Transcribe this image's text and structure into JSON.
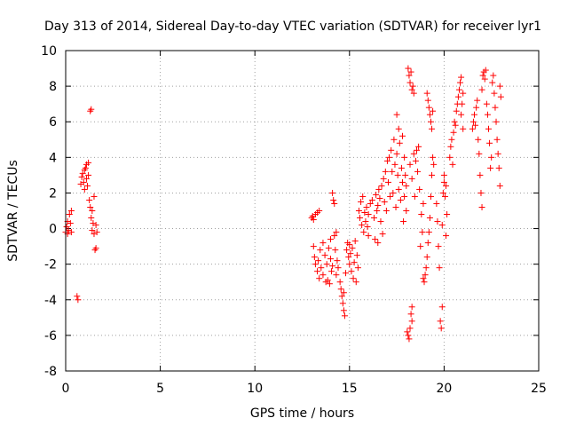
{
  "chart_data": {
    "type": "scatter",
    "title": "Day 313 of 2014, Sidereal Day-to-day VTEC variation (SDTVAR) for receiver lyr1",
    "xlabel": "GPS time / hours",
    "ylabel": "SDTVAR / TECUs",
    "xlim": [
      0,
      25
    ],
    "ylim": [
      -8,
      10
    ],
    "xticks": [
      0,
      5,
      10,
      15,
      20,
      25
    ],
    "yticks": [
      -8,
      -6,
      -4,
      -2,
      0,
      2,
      4,
      6,
      8,
      10
    ],
    "grid": true,
    "marker": "+",
    "marker_color": "#ff0000",
    "series": [
      {
        "name": "SDTVAR",
        "points": [
          [
            0.0,
            -0.2
          ],
          [
            0.05,
            0.1
          ],
          [
            0.1,
            -0.3
          ],
          [
            0.1,
            0.4
          ],
          [
            0.15,
            -0.1
          ],
          [
            0.2,
            0.8
          ],
          [
            0.25,
            0.3
          ],
          [
            0.3,
            1.0
          ],
          [
            0.3,
            -0.2
          ],
          [
            0.6,
            -3.8
          ],
          [
            0.65,
            -4.0
          ],
          [
            0.8,
            2.5
          ],
          [
            0.85,
            2.9
          ],
          [
            0.9,
            3.1
          ],
          [
            0.95,
            2.6
          ],
          [
            1.0,
            3.3
          ],
          [
            1.0,
            2.2
          ],
          [
            1.05,
            3.4
          ],
          [
            1.1,
            2.8
          ],
          [
            1.1,
            3.6
          ],
          [
            1.15,
            2.4
          ],
          [
            1.2,
            3.0
          ],
          [
            1.2,
            3.7
          ],
          [
            1.25,
            1.6
          ],
          [
            1.3,
            6.6
          ],
          [
            1.35,
            6.7
          ],
          [
            1.3,
            1.2
          ],
          [
            1.35,
            0.6
          ],
          [
            1.4,
            1.0
          ],
          [
            1.4,
            -0.1
          ],
          [
            1.45,
            0.3
          ],
          [
            1.5,
            1.8
          ],
          [
            1.5,
            -0.3
          ],
          [
            1.55,
            -1.2
          ],
          [
            1.6,
            -1.1
          ],
          [
            1.6,
            0.2
          ],
          [
            1.65,
            -0.2
          ],
          [
            13.0,
            0.6
          ],
          [
            13.05,
            0.7
          ],
          [
            13.1,
            0.5
          ],
          [
            13.2,
            0.8
          ],
          [
            13.3,
            0.9
          ],
          [
            13.4,
            1.0
          ],
          [
            13.1,
            -1.0
          ],
          [
            13.15,
            -1.6
          ],
          [
            13.2,
            -2.0
          ],
          [
            13.3,
            -2.4
          ],
          [
            13.35,
            -1.8
          ],
          [
            13.4,
            -2.8
          ],
          [
            13.45,
            -1.2
          ],
          [
            13.5,
            -2.2
          ],
          [
            13.6,
            -2.6
          ],
          [
            13.6,
            -0.8
          ],
          [
            13.7,
            -1.5
          ],
          [
            13.75,
            -3.0
          ],
          [
            13.8,
            -2.0
          ],
          [
            13.85,
            -2.9
          ],
          [
            13.9,
            -1.1
          ],
          [
            13.95,
            -3.1
          ],
          [
            14.0,
            -1.7
          ],
          [
            14.0,
            -0.6
          ],
          [
            14.05,
            -2.4
          ],
          [
            14.1,
            -2.1
          ],
          [
            14.1,
            2.0
          ],
          [
            14.15,
            1.6
          ],
          [
            14.2,
            1.4
          ],
          [
            14.2,
            -0.4
          ],
          [
            14.25,
            -1.2
          ],
          [
            14.3,
            -2.6
          ],
          [
            14.3,
            -0.2
          ],
          [
            14.35,
            -1.8
          ],
          [
            14.4,
            -2.2
          ],
          [
            14.5,
            -3.0
          ],
          [
            14.55,
            -3.4
          ],
          [
            14.6,
            -3.8
          ],
          [
            14.65,
            -4.2
          ],
          [
            14.7,
            -3.6
          ],
          [
            14.7,
            -4.6
          ],
          [
            14.75,
            -4.9
          ],
          [
            14.8,
            -2.5
          ],
          [
            14.85,
            -1.2
          ],
          [
            14.9,
            -0.8
          ],
          [
            14.95,
            -1.6
          ],
          [
            15.0,
            -2.0
          ],
          [
            15.0,
            -0.9
          ],
          [
            15.05,
            -1.4
          ],
          [
            15.1,
            -2.4
          ],
          [
            15.15,
            -1.1
          ],
          [
            15.2,
            -2.8
          ],
          [
            15.25,
            -1.9
          ],
          [
            15.3,
            -0.7
          ],
          [
            15.35,
            -3.0
          ],
          [
            15.4,
            -1.5
          ],
          [
            15.45,
            -2.2
          ],
          [
            15.5,
            1.0
          ],
          [
            15.55,
            0.6
          ],
          [
            15.6,
            1.5
          ],
          [
            15.65,
            0.2
          ],
          [
            15.7,
            1.8
          ],
          [
            15.75,
            -0.2
          ],
          [
            15.8,
            0.9
          ],
          [
            15.85,
            0.4
          ],
          [
            15.9,
            1.2
          ],
          [
            15.95,
            0.1
          ],
          [
            16.0,
            -0.4
          ],
          [
            16.0,
            0.8
          ],
          [
            16.1,
            1.4
          ],
          [
            16.2,
            1.6
          ],
          [
            16.3,
            0.6
          ],
          [
            16.35,
            -0.6
          ],
          [
            16.4,
            1.9
          ],
          [
            16.45,
            1.0
          ],
          [
            16.5,
            -0.8
          ],
          [
            16.5,
            1.3
          ],
          [
            16.55,
            2.2
          ],
          [
            16.6,
            1.7
          ],
          [
            16.65,
            0.4
          ],
          [
            16.7,
            2.4
          ],
          [
            16.75,
            -0.3
          ],
          [
            16.8,
            2.8
          ],
          [
            16.85,
            1.5
          ],
          [
            16.9,
            3.2
          ],
          [
            16.95,
            1.0
          ],
          [
            17.0,
            3.8
          ],
          [
            17.05,
            2.6
          ],
          [
            17.1,
            4.0
          ],
          [
            17.15,
            1.8
          ],
          [
            17.2,
            4.4
          ],
          [
            17.25,
            3.2
          ],
          [
            17.3,
            2.0
          ],
          [
            17.35,
            5.0
          ],
          [
            17.4,
            3.6
          ],
          [
            17.45,
            1.2
          ],
          [
            17.5,
            4.2
          ],
          [
            17.5,
            6.4
          ],
          [
            17.55,
            3.0
          ],
          [
            17.6,
            2.2
          ],
          [
            17.6,
            5.6
          ],
          [
            17.65,
            4.8
          ],
          [
            17.7,
            1.6
          ],
          [
            17.75,
            3.4
          ],
          [
            17.8,
            2.6
          ],
          [
            17.8,
            5.2
          ],
          [
            17.85,
            0.4
          ],
          [
            17.9,
            4.0
          ],
          [
            17.9,
            1.8
          ],
          [
            17.95,
            3.0
          ],
          [
            18.0,
            2.4
          ],
          [
            18.0,
            1.0
          ],
          [
            18.05,
            -5.8
          ],
          [
            18.1,
            -6.0
          ],
          [
            18.15,
            -6.2
          ],
          [
            18.2,
            -5.6
          ],
          [
            18.25,
            -4.8
          ],
          [
            18.3,
            -5.2
          ],
          [
            18.3,
            -4.4
          ],
          [
            18.1,
            9.0
          ],
          [
            18.15,
            8.6
          ],
          [
            18.2,
            8.2
          ],
          [
            18.25,
            8.8
          ],
          [
            18.3,
            7.8
          ],
          [
            18.35,
            8.0
          ],
          [
            18.4,
            7.6
          ],
          [
            18.2,
            3.6
          ],
          [
            18.3,
            2.8
          ],
          [
            18.4,
            4.2
          ],
          [
            18.45,
            1.8
          ],
          [
            18.5,
            3.8
          ],
          [
            18.55,
            4.4
          ],
          [
            18.6,
            3.2
          ],
          [
            18.65,
            4.6
          ],
          [
            18.7,
            2.2
          ],
          [
            18.75,
            -1.0
          ],
          [
            18.8,
            0.8
          ],
          [
            18.85,
            -0.2
          ],
          [
            18.9,
            1.4
          ],
          [
            18.9,
            -2.8
          ],
          [
            18.95,
            -3.0
          ],
          [
            19.0,
            -2.6
          ],
          [
            19.05,
            -2.2
          ],
          [
            19.1,
            -1.6
          ],
          [
            19.15,
            -0.8
          ],
          [
            19.2,
            -0.2
          ],
          [
            19.25,
            0.6
          ],
          [
            19.3,
            1.8
          ],
          [
            19.35,
            3.0
          ],
          [
            19.4,
            4.0
          ],
          [
            19.45,
            3.6
          ],
          [
            19.1,
            7.6
          ],
          [
            19.15,
            7.2
          ],
          [
            19.2,
            6.8
          ],
          [
            19.25,
            6.4
          ],
          [
            19.3,
            6.0
          ],
          [
            19.35,
            5.6
          ],
          [
            19.4,
            6.6
          ],
          [
            19.6,
            1.4
          ],
          [
            19.65,
            0.4
          ],
          [
            19.7,
            -1.0
          ],
          [
            19.75,
            -2.2
          ],
          [
            19.8,
            -5.2
          ],
          [
            19.85,
            -5.6
          ],
          [
            19.9,
            -4.4
          ],
          [
            19.9,
            0.2
          ],
          [
            19.95,
            2.0
          ],
          [
            20.0,
            2.6
          ],
          [
            20.0,
            3.0
          ],
          [
            20.05,
            1.8
          ],
          [
            20.1,
            2.4
          ],
          [
            20.1,
            -0.4
          ],
          [
            20.15,
            0.8
          ],
          [
            20.3,
            4.0
          ],
          [
            20.35,
            4.6
          ],
          [
            20.4,
            5.0
          ],
          [
            20.45,
            3.6
          ],
          [
            20.5,
            5.4
          ],
          [
            20.55,
            6.0
          ],
          [
            20.6,
            5.8
          ],
          [
            20.65,
            6.6
          ],
          [
            20.7,
            7.0
          ],
          [
            20.75,
            7.4
          ],
          [
            20.8,
            7.8
          ],
          [
            20.85,
            8.2
          ],
          [
            20.9,
            8.5
          ],
          [
            20.9,
            6.4
          ],
          [
            20.95,
            7.0
          ],
          [
            21.0,
            5.6
          ],
          [
            21.0,
            7.6
          ],
          [
            21.5,
            5.6
          ],
          [
            21.55,
            6.0
          ],
          [
            21.6,
            6.4
          ],
          [
            21.65,
            5.8
          ],
          [
            21.7,
            6.8
          ],
          [
            21.75,
            7.2
          ],
          [
            21.8,
            5.0
          ],
          [
            21.85,
            4.2
          ],
          [
            21.9,
            3.0
          ],
          [
            21.95,
            2.0
          ],
          [
            22.0,
            1.2
          ],
          [
            22.0,
            7.8
          ],
          [
            22.05,
            8.6
          ],
          [
            22.1,
            8.8
          ],
          [
            22.15,
            8.4
          ],
          [
            22.2,
            8.9
          ],
          [
            22.25,
            7.0
          ],
          [
            22.3,
            6.4
          ],
          [
            22.35,
            5.6
          ],
          [
            22.4,
            4.8
          ],
          [
            22.45,
            3.4
          ],
          [
            22.5,
            4.0
          ],
          [
            22.55,
            8.2
          ],
          [
            22.6,
            8.6
          ],
          [
            22.65,
            7.6
          ],
          [
            22.7,
            6.8
          ],
          [
            22.75,
            6.0
          ],
          [
            22.8,
            5.0
          ],
          [
            22.85,
            4.2
          ],
          [
            22.9,
            3.4
          ],
          [
            22.95,
            2.4
          ],
          [
            22.95,
            8.0
          ],
          [
            23.0,
            7.4
          ]
        ]
      }
    ]
  }
}
